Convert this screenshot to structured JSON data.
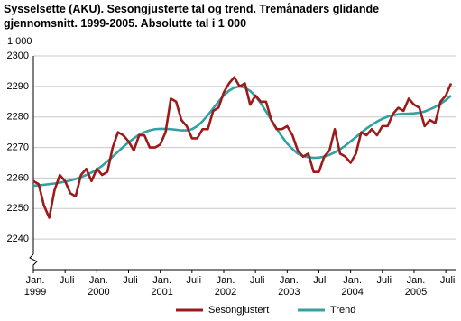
{
  "chart_data": {
    "type": "line",
    "title": "Sysselsette (AKU).  Sesongjusterte tal og trend. Tremånaders glidande gjennomsnitt. 1999-2005. Absolutte tal i 1 000",
    "y_unit_label": "1 000",
    "categories": [
      "Jan.\n1999",
      null,
      null,
      null,
      null,
      null,
      "Juli",
      null,
      null,
      null,
      null,
      null,
      "Jan.\n2000",
      null,
      null,
      null,
      null,
      null,
      "Juli",
      null,
      null,
      null,
      null,
      null,
      "Jan.\n2001",
      null,
      null,
      null,
      null,
      null,
      "Juli",
      null,
      null,
      null,
      null,
      null,
      "Jan.\n2002",
      null,
      null,
      null,
      null,
      null,
      "Juli",
      null,
      null,
      null,
      null,
      null,
      "Jan.\n2003",
      null,
      null,
      null,
      null,
      null,
      "Juli",
      null,
      null,
      null,
      null,
      null,
      "Jan.\n2004",
      null,
      null,
      null,
      null,
      null,
      "Juli",
      null,
      null,
      null,
      null,
      null,
      "Jan.\n2005",
      null,
      null,
      null,
      null,
      null,
      "Juli",
      null
    ],
    "series": [
      {
        "name": "Sesongjustert",
        "color": "#9e1a1a",
        "values": [
          2259,
          2258,
          2251,
          2247,
          2256,
          2261,
          2259,
          2255,
          2254,
          2261,
          2263,
          2259,
          2263,
          2261,
          2262,
          2270,
          2275,
          2274,
          2272,
          2269,
          2274,
          2274,
          2270,
          2270,
          2271,
          2275,
          2286,
          2285,
          2279,
          2277,
          2273,
          2273,
          2276,
          2276,
          2282,
          2283,
          2288,
          2291,
          2293,
          2290,
          2291,
          2284,
          2287,
          2285,
          2285,
          2279,
          2276,
          2276,
          2277,
          2274,
          2269,
          2267,
          2268,
          2262,
          2262,
          2267,
          2269,
          2276,
          2268,
          2267,
          2265,
          2268,
          2275,
          2274,
          2276,
          2274,
          2277,
          2277,
          2281,
          2283,
          2282,
          2286,
          2284,
          2283,
          2277,
          2279,
          2278,
          2285,
          2287,
          2291
        ]
      },
      {
        "name": "Trend",
        "color": "#33a1a1",
        "values": [
          2257.5,
          2257.6,
          2257.8,
          2258,
          2258.2,
          2258.5,
          2258.8,
          2259.2,
          2259.7,
          2260.3,
          2261,
          2261.8,
          2262.8,
          2264,
          2265.5,
          2267,
          2268.6,
          2270.2,
          2271.7,
          2273,
          2274.2,
          2275,
          2275.6,
          2276,
          2276.1,
          2276.1,
          2276,
          2275.8,
          2275.6,
          2275.6,
          2276,
          2277,
          2278.6,
          2280.6,
          2282.8,
          2285,
          2287,
          2288.6,
          2289.6,
          2290,
          2289.6,
          2288.5,
          2286.8,
          2284.5,
          2281.8,
          2279,
          2276.2,
          2273.6,
          2271.3,
          2269.5,
          2268,
          2267.2,
          2266.8,
          2266.6,
          2266.7,
          2267,
          2267.6,
          2268.4,
          2269.4,
          2270.6,
          2272,
          2273.4,
          2274.8,
          2276.2,
          2277.4,
          2278.5,
          2279.4,
          2280.1,
          2280.6,
          2280.9,
          2281,
          2281.1,
          2281.2,
          2281.4,
          2281.8,
          2282.5,
          2283.3,
          2284.3,
          2285.5,
          2287
        ]
      }
    ],
    "ylim": [
      2230,
      2300
    ],
    "yticks": [
      2240,
      2250,
      2260,
      2270,
      2280,
      2290,
      2300
    ],
    "grid": true
  }
}
